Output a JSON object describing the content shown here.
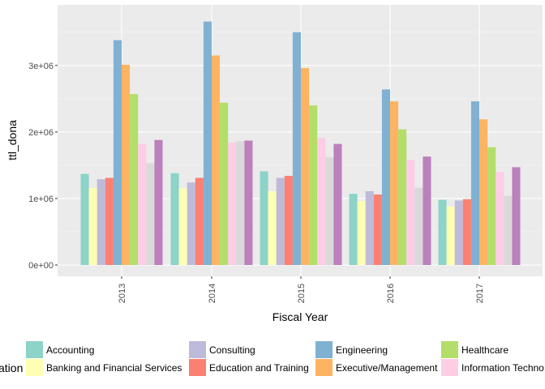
{
  "chart_data": {
    "type": "bar",
    "title": "",
    "xlabel": "Fiscal Year",
    "ylabel": "ttl_dona",
    "categories": [
      "2013",
      "2014",
      "2015",
      "2016",
      "2017"
    ],
    "ylim": [
      0,
      3850000
    ],
    "yticks": [
      0,
      1000000,
      2000000,
      3000000
    ],
    "ytick_labels": [
      "0e+00",
      "1e+06",
      "2e+06",
      "3e+06"
    ],
    "legend_title": "ation",
    "legend_position": "bottom",
    "series": [
      {
        "name": "Accounting",
        "color": "#8dd3c7",
        "values": [
          1370000,
          1380000,
          1410000,
          1070000,
          980000
        ]
      },
      {
        "name": "Banking and Financial Services",
        "color": "#ffffb3",
        "values": [
          1160000,
          1150000,
          1110000,
          960000,
          880000
        ]
      },
      {
        "name": "Consulting",
        "color": "#bebada",
        "values": [
          1290000,
          1240000,
          1310000,
          1110000,
          970000
        ]
      },
      {
        "name": "Education and Training",
        "color": "#fb8072",
        "values": [
          1310000,
          1310000,
          1340000,
          1060000,
          990000
        ]
      },
      {
        "name": "Engineering",
        "color": "#80b1d3",
        "values": [
          3380000,
          3660000,
          3500000,
          2640000,
          2460000
        ]
      },
      {
        "name": "Executive/Management",
        "color": "#fdb462",
        "values": [
          3010000,
          3150000,
          2960000,
          2460000,
          2190000
        ]
      },
      {
        "name": "Healthcare",
        "color": "#b3de69",
        "values": [
          2570000,
          2440000,
          2400000,
          2040000,
          1770000
        ]
      },
      {
        "name": "Information Technology",
        "color": "#fccde5",
        "values": [
          1820000,
          1840000,
          1910000,
          1580000,
          1400000
        ]
      },
      {
        "name": "",
        "color": "#d9d9d9",
        "values": [
          1530000,
          1860000,
          1620000,
          1160000,
          1040000
        ]
      },
      {
        "name": "",
        "color": "#bc80bd",
        "values": [
          1880000,
          1870000,
          1820000,
          1630000,
          1470000
        ]
      }
    ],
    "legend": [
      {
        "label": "Accounting",
        "color": "#8dd3c7"
      },
      {
        "label": "Banking and Financial Services",
        "color": "#ffffb3"
      },
      {
        "label": "Consulting",
        "color": "#bebada"
      },
      {
        "label": "Education and Training",
        "color": "#fb8072"
      },
      {
        "label": "Engineering",
        "color": "#80b1d3"
      },
      {
        "label": "Executive/Management",
        "color": "#fdb462"
      },
      {
        "label": "Healthcare",
        "color": "#b3de69"
      },
      {
        "label": "Information Techno",
        "color": "#fccde5"
      }
    ]
  }
}
